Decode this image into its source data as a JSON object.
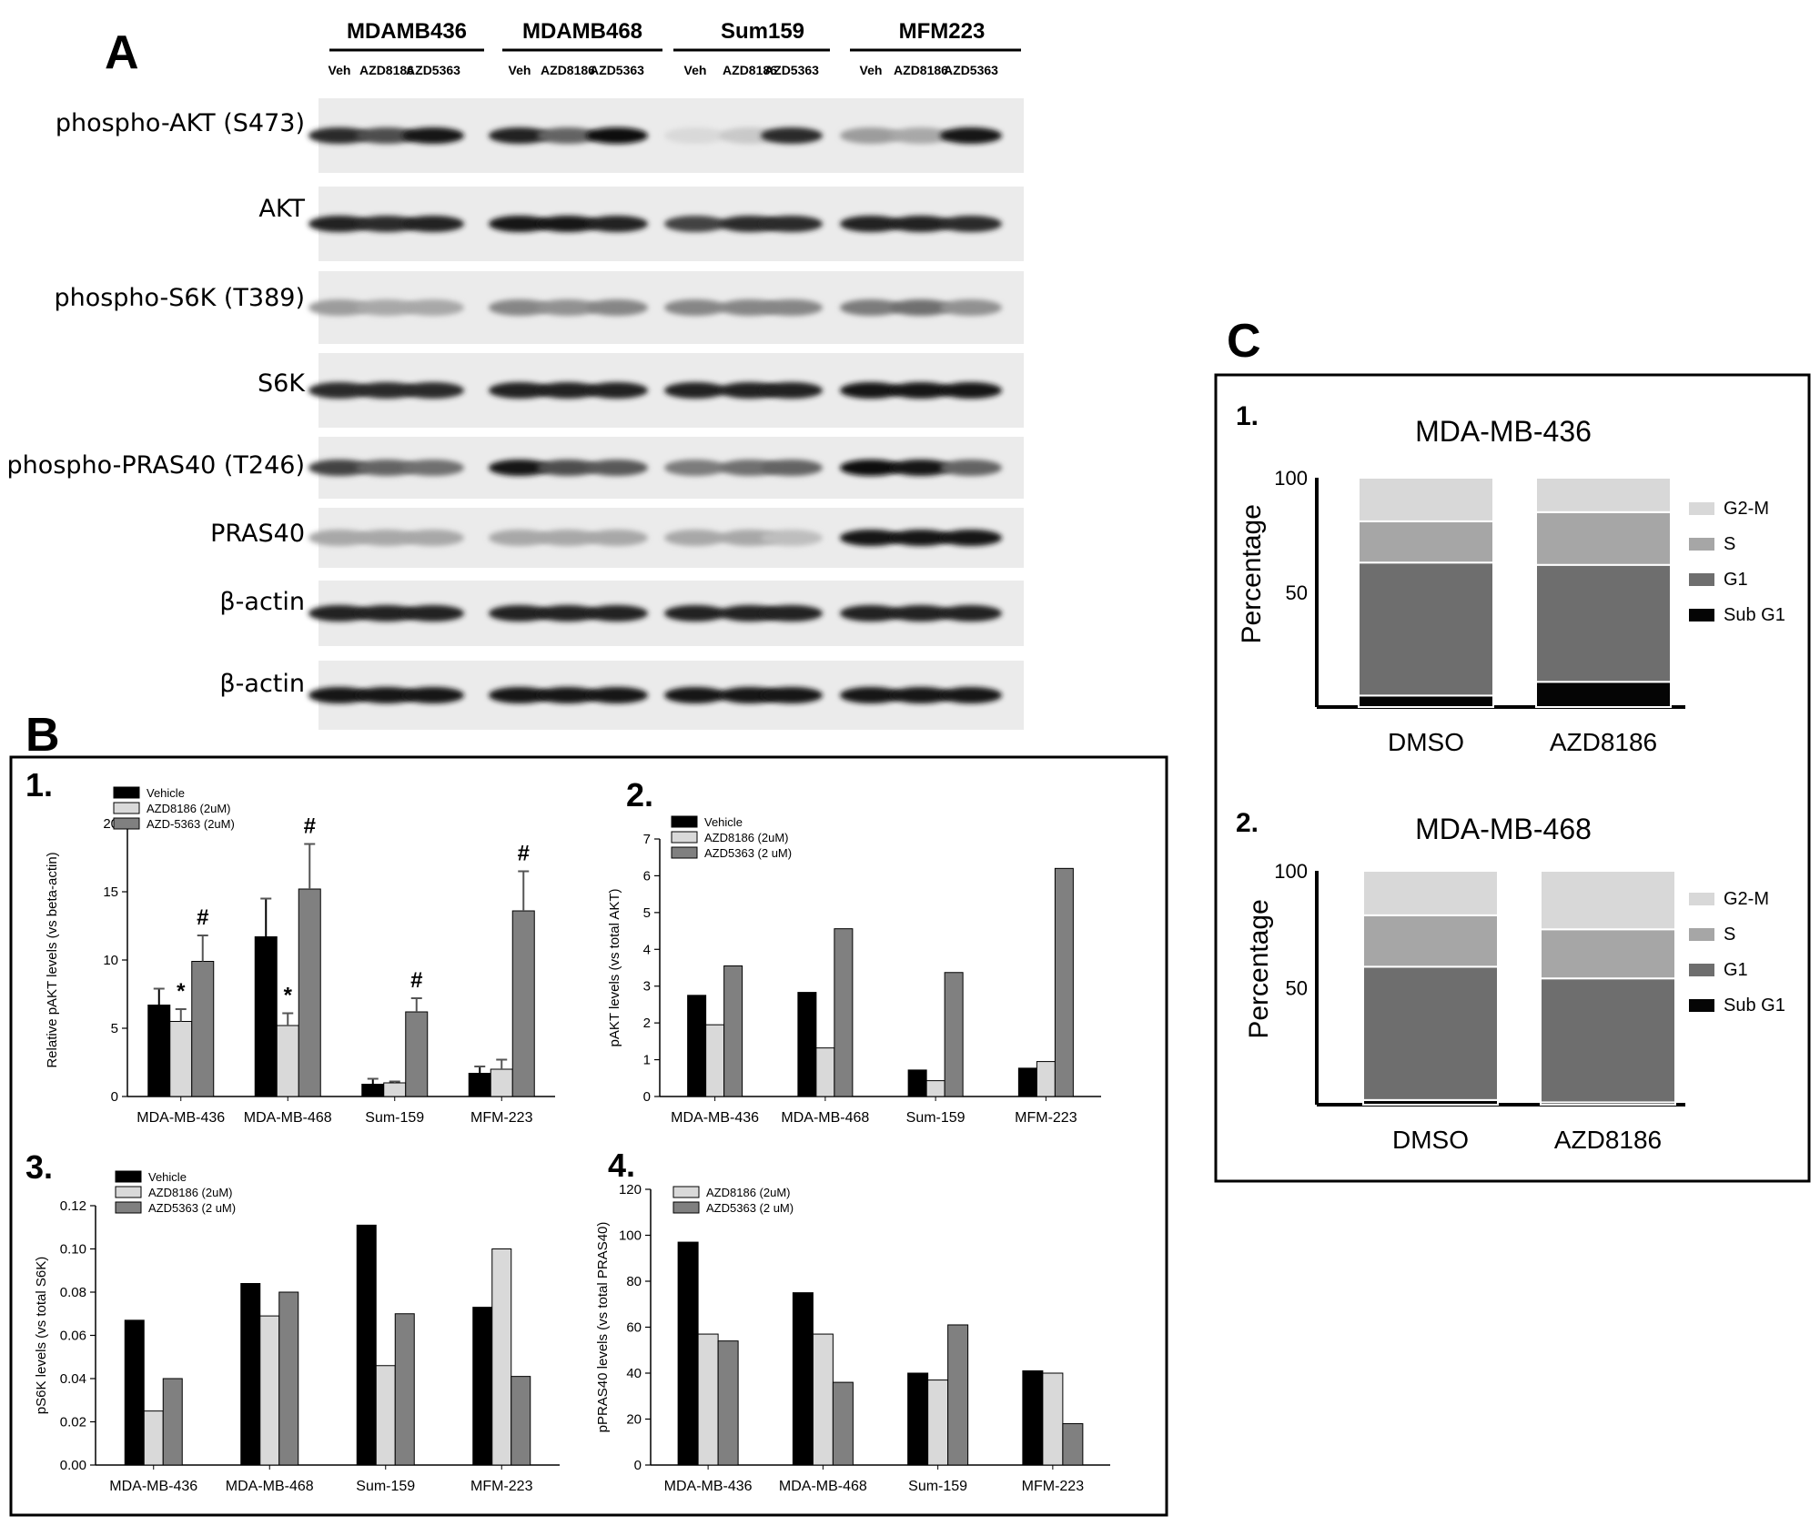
{
  "panel_a": {
    "letter": "A",
    "cell_lines": [
      "MDAMB436",
      "MDAMB468",
      "Sum159",
      "MFM223"
    ],
    "treatments": [
      "Veh",
      "AZD8186",
      "AZD5363"
    ],
    "blots": [
      {
        "label": "phospho-AKT (S473)",
        "bands": [
          [
            0.85,
            0.7,
            0.95
          ],
          [
            0.9,
            0.6,
            1.0
          ],
          [
            0.08,
            0.15,
            0.85
          ],
          [
            0.35,
            0.3,
            0.95
          ]
        ]
      },
      {
        "label": "AKT",
        "bands": [
          [
            0.9,
            0.85,
            0.9
          ],
          [
            0.95,
            0.95,
            0.9
          ],
          [
            0.75,
            0.85,
            0.85
          ],
          [
            0.9,
            0.9,
            0.85
          ]
        ]
      },
      {
        "label": "phospho-S6K (T389)",
        "bands": [
          [
            0.35,
            0.3,
            0.3
          ],
          [
            0.45,
            0.4,
            0.45
          ],
          [
            0.45,
            0.45,
            0.45
          ],
          [
            0.5,
            0.55,
            0.4
          ]
        ]
      },
      {
        "label": "S6K",
        "bands": [
          [
            0.85,
            0.85,
            0.85
          ],
          [
            0.9,
            0.9,
            0.9
          ],
          [
            0.9,
            0.9,
            0.9
          ],
          [
            0.95,
            0.95,
            0.95
          ]
        ]
      },
      {
        "label": "phospho-PRAS40 (T246)",
        "bands": [
          [
            0.75,
            0.6,
            0.55
          ],
          [
            0.95,
            0.7,
            0.65
          ],
          [
            0.5,
            0.55,
            0.6
          ],
          [
            1.0,
            0.95,
            0.6
          ]
        ]
      },
      {
        "label": "PRAS40",
        "bands": [
          [
            0.3,
            0.3,
            0.3
          ],
          [
            0.3,
            0.3,
            0.3
          ],
          [
            0.3,
            0.3,
            0.2
          ],
          [
            0.95,
            0.95,
            0.95
          ]
        ]
      },
      {
        "label": "β-actin",
        "bands": [
          [
            0.9,
            0.9,
            0.9
          ],
          [
            0.9,
            0.9,
            0.9
          ],
          [
            0.9,
            0.9,
            0.9
          ],
          [
            0.9,
            0.9,
            0.9
          ]
        ]
      },
      {
        "label": "β-actin",
        "bands": [
          [
            0.95,
            0.95,
            0.95
          ],
          [
            0.95,
            0.95,
            0.95
          ],
          [
            0.95,
            0.95,
            0.95
          ],
          [
            0.95,
            0.95,
            0.95
          ]
        ]
      }
    ]
  },
  "panel_b": {
    "letter": "B"
  },
  "panel_c": {
    "letter": "C"
  },
  "colors": {
    "vehicle": "#000000",
    "azd8186": "#d9d9d9",
    "azd5363": "#808080",
    "g2m": "#d8d8d8",
    "s": "#a6a6a6",
    "g1": "#6e6e6e",
    "subg1": "#050505"
  },
  "chart_data": [
    {
      "id": "B1",
      "number": "1.",
      "type": "bar",
      "ylabel": "Relative pAKT levels (vs beta-actin)",
      "ylim": [
        0,
        20
      ],
      "yticks": [
        "0",
        "5",
        "10",
        "15",
        "20"
      ],
      "categories": [
        "MDA-MB-436",
        "MDA-MB-468",
        "Sum-159",
        "MFM-223"
      ],
      "series": [
        {
          "name": "Vehicle",
          "values": [
            6.7,
            11.7,
            0.9,
            1.7
          ],
          "errors": [
            1.2,
            2.8,
            0.4,
            0.5
          ]
        },
        {
          "name": "AZD8186 (2uM)",
          "values": [
            5.5,
            5.2,
            1.0,
            2.0
          ],
          "errors": [
            0.9,
            0.9,
            0.1,
            0.7
          ]
        },
        {
          "name": "AZD-5363 (2uM)",
          "values": [
            9.9,
            15.2,
            6.2,
            13.6
          ],
          "errors": [
            1.9,
            3.3,
            1.0,
            2.9
          ]
        }
      ],
      "annotations": [
        {
          "category": 0,
          "series": 1,
          "text": "*"
        },
        {
          "category": 0,
          "series": 2,
          "text": "#"
        },
        {
          "category": 1,
          "series": 1,
          "text": "*"
        },
        {
          "category": 1,
          "series": 2,
          "text": "#"
        },
        {
          "category": 2,
          "series": 2,
          "text": "#"
        },
        {
          "category": 3,
          "series": 2,
          "text": "#"
        }
      ]
    },
    {
      "id": "B2",
      "number": "2.",
      "type": "bar",
      "ylabel": "pAKT levels (vs total AKT)",
      "ylim": [
        0,
        7
      ],
      "yticks": [
        "0",
        "1",
        "2",
        "3",
        "4",
        "5",
        "6",
        "7"
      ],
      "categories": [
        "MDA-MB-436",
        "MDA-MB-468",
        "Sum-159",
        "MFM-223"
      ],
      "series": [
        {
          "name": "Vehicle",
          "values": [
            2.75,
            2.83,
            0.72,
            0.77
          ]
        },
        {
          "name": "AZD8186 (2uM)",
          "values": [
            1.95,
            1.32,
            0.43,
            0.95
          ]
        },
        {
          "name": "AZD5363 (2 uM)",
          "values": [
            3.55,
            4.56,
            3.37,
            6.2
          ]
        }
      ]
    },
    {
      "id": "B3",
      "number": "3.",
      "type": "bar",
      "ylabel": "pS6K levels (vs total S6K)",
      "ylim": [
        0,
        0.12
      ],
      "yticks": [
        "0.00",
        "0.02",
        "0.04",
        "0.06",
        "0.08",
        "0.10",
        "0.12"
      ],
      "categories": [
        "MDA-MB-436",
        "MDA-MB-468",
        "Sum-159",
        "MFM-223"
      ],
      "series": [
        {
          "name": "Vehicle",
          "values": [
            0.067,
            0.084,
            0.111,
            0.073
          ]
        },
        {
          "name": "AZD8186 (2uM)",
          "values": [
            0.025,
            0.069,
            0.046,
            0.1
          ]
        },
        {
          "name": "AZD5363 (2 uM)",
          "values": [
            0.04,
            0.08,
            0.07,
            0.041
          ]
        }
      ]
    },
    {
      "id": "B4",
      "number": "4.",
      "type": "bar",
      "ylabel": "pPRAS40 levels (vs total PRAS40)",
      "ylim": [
        0,
        120
      ],
      "yticks": [
        "0",
        "20",
        "40",
        "60",
        "80",
        "100",
        "120"
      ],
      "categories": [
        "MDA-MB-436",
        "MDA-MB-468",
        "Sum-159",
        "MFM-223"
      ],
      "series": [
        {
          "name": "",
          "values": [
            97,
            75,
            40,
            41
          ]
        },
        {
          "name": "AZD8186 (2uM)",
          "values": [
            57,
            57,
            37,
            40
          ]
        },
        {
          "name": "AZD5363 (2 uM)",
          "values": [
            54,
            36,
            61,
            18
          ]
        }
      ]
    },
    {
      "id": "C1",
      "number": "1.",
      "type": "bar",
      "stacked": true,
      "title": "MDA-MB-436",
      "ylabel": "Percentage",
      "ylim": [
        0,
        100
      ],
      "yticks": [
        "50",
        "100"
      ],
      "categories": [
        "DMSO",
        "AZD8186"
      ],
      "series": [
        {
          "name": "Sub G1",
          "values": [
            5,
            11
          ]
        },
        {
          "name": "G1",
          "values": [
            58,
            51
          ]
        },
        {
          "name": "S",
          "values": [
            18,
            23
          ]
        },
        {
          "name": "G2-M",
          "values": [
            19,
            15
          ]
        }
      ]
    },
    {
      "id": "C2",
      "number": "2.",
      "type": "bar",
      "stacked": true,
      "title": "MDA-MB-468",
      "ylabel": "Percentage",
      "ylim": [
        0,
        100
      ],
      "yticks": [
        "50",
        "100"
      ],
      "categories": [
        "DMSO",
        "AZD8186"
      ],
      "series": [
        {
          "name": "Sub G1",
          "values": [
            2,
            1
          ]
        },
        {
          "name": "G1",
          "values": [
            57,
            53
          ]
        },
        {
          "name": "S",
          "values": [
            22,
            21
          ]
        },
        {
          "name": "G2-M",
          "values": [
            19,
            25
          ]
        }
      ]
    }
  ]
}
